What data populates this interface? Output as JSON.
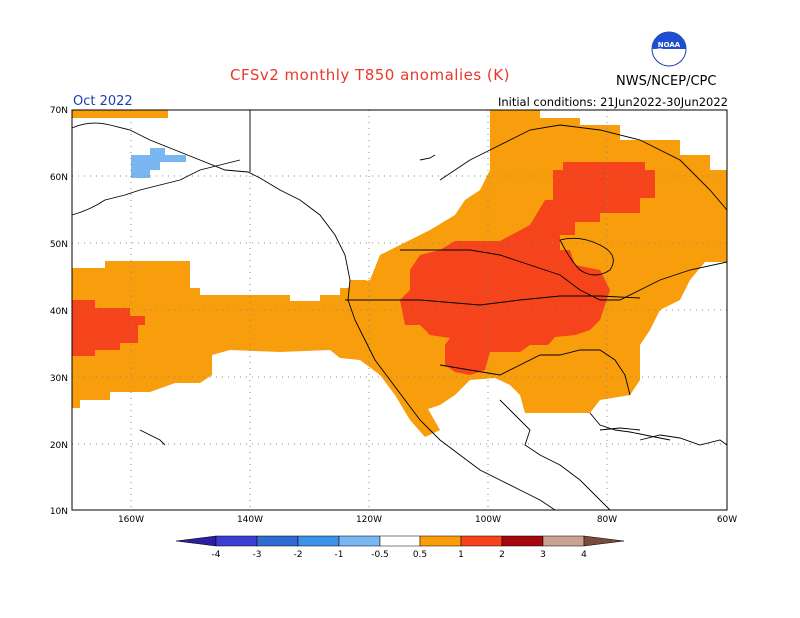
{
  "header": {
    "title": "CFSv2 monthly T850 anomalies (K)",
    "month": "Oct 2022",
    "initial_conditions": "Initial conditions: 21Jun2022-30Jun2022",
    "agency": "NWS/NCEP/CPC",
    "logo_text": "NOAA"
  },
  "axes": {
    "lat_labels": [
      "70N",
      "60N",
      "50N",
      "40N",
      "30N",
      "20N",
      "10N"
    ],
    "lon_labels": [
      "160W",
      "140W",
      "120W",
      "100W",
      "80W",
      "60W"
    ]
  },
  "colorbar": {
    "labels": [
      "-4",
      "-3",
      "-2",
      "-1",
      "-0.5",
      "0.5",
      "1",
      "2",
      "3",
      "4"
    ],
    "colors": [
      "#2e1fa0",
      "#3a3fd2",
      "#2f6bd0",
      "#3b92e6",
      "#79b6f2",
      "#ffffff",
      "#f89d0c",
      "#f5431b",
      "#a5080c",
      "#c9a294",
      "#7a4a3a"
    ]
  },
  "legend_colors": {
    "warm_0_5_1": "#f89d0c",
    "warm_1_2": "#f5431b",
    "cool_neg": "#79b6f2"
  }
}
